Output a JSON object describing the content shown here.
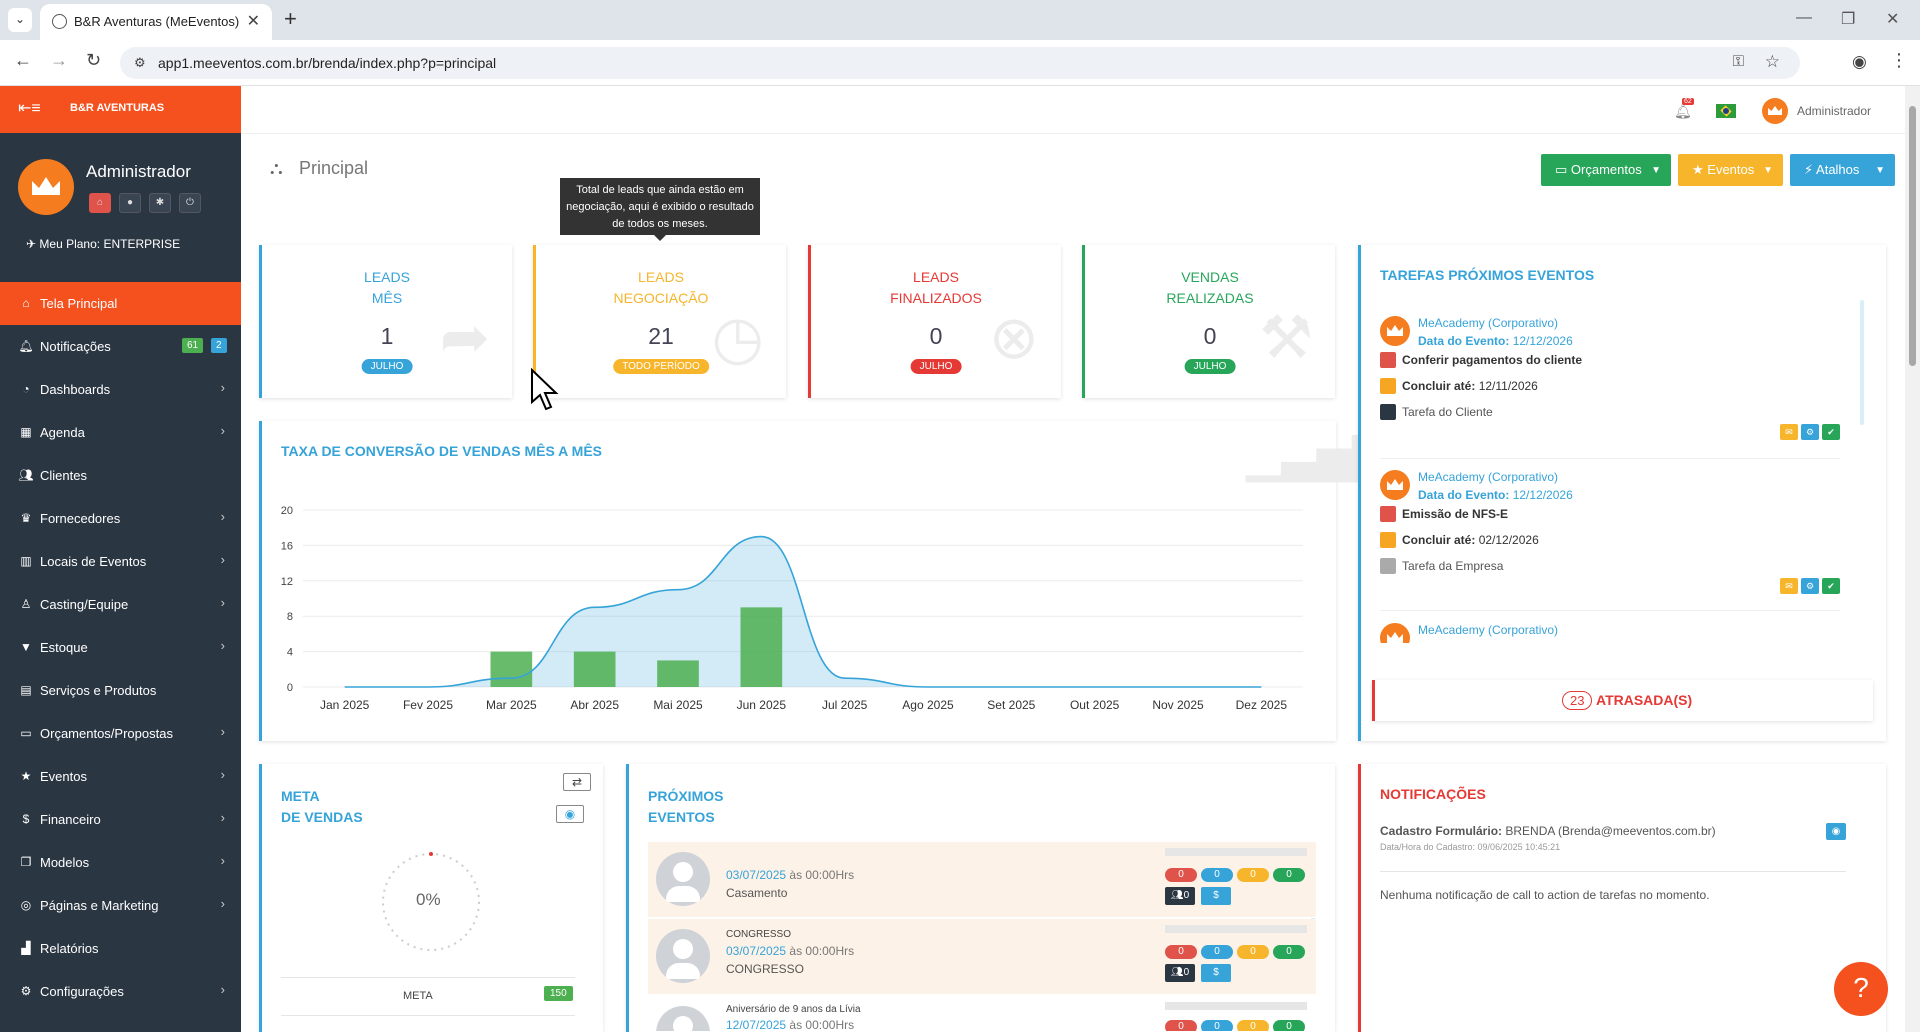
{
  "browser": {
    "tab_title": "B&R Aventuras (MeEventos)",
    "url": "app1.meeventos.com.br/brenda/index.php?p=principal"
  },
  "sidebar": {
    "brand": "B&R AVENTURAS",
    "user_name": "Administrador",
    "plan": "Meu Plano: ENTERPRISE",
    "items": [
      {
        "label": "Tela Principal",
        "icon": "home-icon"
      },
      {
        "label": "Notificações",
        "icon": "bell-icon",
        "badge_green": "61",
        "badge_blue": "2"
      },
      {
        "label": "Dashboards",
        "icon": "dashboard-icon"
      },
      {
        "label": "Agenda",
        "icon": "calendar-icon"
      },
      {
        "label": "Clientes",
        "icon": "users-icon"
      },
      {
        "label": "Fornecedores",
        "icon": "trophy-icon"
      },
      {
        "label": "Locais de Eventos",
        "icon": "building-icon"
      },
      {
        "label": "Casting/Equipe",
        "icon": "person-icon"
      },
      {
        "label": "Estoque",
        "icon": "filter-icon"
      },
      {
        "label": "Serviços e Produtos",
        "icon": "list-icon"
      },
      {
        "label": "Orçamentos/Propostas",
        "icon": "laptop-icon"
      },
      {
        "label": "Eventos",
        "icon": "star-icon"
      },
      {
        "label": "Financeiro",
        "icon": "dollar-icon"
      },
      {
        "label": "Modelos",
        "icon": "copy-icon"
      },
      {
        "label": "Páginas e Marketing",
        "icon": "globe-icon"
      },
      {
        "label": "Relatórios",
        "icon": "chart-icon"
      },
      {
        "label": "Configurações",
        "icon": "gear-icon"
      }
    ]
  },
  "header": {
    "user_name": "Administrador",
    "notification_badge": "62"
  },
  "page": {
    "title": "Principal",
    "buttons": {
      "orcamentos": "Orçamentos",
      "eventos": "Eventos",
      "atalhos": "Atalhos"
    },
    "tooltip": "Total de leads que ainda estão em negociação, aqui é exibido o resultado de todos os meses."
  },
  "stats": [
    {
      "line1": "LEADS",
      "line2": "MÊS",
      "value": "1",
      "pill": "JULHO"
    },
    {
      "line1": "LEADS",
      "line2": "NEGOCIAÇÃO",
      "value": "21",
      "pill": "TODO PERÍODO"
    },
    {
      "line1": "LEADS",
      "line2": "FINALIZADOS",
      "value": "0",
      "pill": "JULHO"
    },
    {
      "line1": "VENDAS",
      "line2": "REALIZADAS",
      "value": "0",
      "pill": "JULHO"
    }
  ],
  "chart_data": {
    "type": "bar",
    "title": "TAXA DE CONVERSÃO DE VENDAS MÊS A MÊS",
    "categories": [
      "Jan 2025",
      "Fev 2025",
      "Mar 2025",
      "Abr 2025",
      "Mai 2025",
      "Jun 2025",
      "Jul 2025",
      "Ago 2025",
      "Set 2025",
      "Out 2025",
      "Nov 2025",
      "Dez 2025"
    ],
    "yticks": [
      0,
      4,
      8,
      12,
      16,
      20
    ],
    "ylim": [
      0,
      20
    ],
    "series": [
      {
        "values": [
          0,
          0,
          4,
          4,
          3,
          9,
          0,
          0,
          0,
          0,
          0,
          0
        ],
        "color": "#4caf50"
      },
      {
        "values": [
          0,
          0,
          1,
          9,
          11,
          17,
          1,
          0,
          0,
          0,
          0,
          0
        ],
        "color": "#36a3d9"
      }
    ],
    "grid": true
  },
  "tasks": {
    "title": "TAREFAS PRÓXIMOS EVENTOS",
    "items": [
      {
        "company": "MeAcademy (Corporativo)",
        "date_label": "Data do Evento:",
        "date": "12/12/2026",
        "task": "Conferir pagamentos do cliente",
        "due_label": "Concluir até:",
        "due": "12/11/2026",
        "type": "Tarefa do Cliente"
      },
      {
        "company": "MeAcademy (Corporativo)",
        "date_label": "Data do Evento:",
        "date": "12/12/2026",
        "task": "Emissão de NFS-E",
        "due_label": "Concluir até:",
        "due": "02/12/2026",
        "type": "Tarefa da Empresa"
      },
      {
        "company": "MeAcademy (Corporativo)"
      }
    ],
    "overdue_count": "23",
    "overdue_label": "ATRASADA(S)"
  },
  "meta": {
    "line1": "META",
    "line2": "DE VENDAS",
    "percent": "0%",
    "meta_label": "META",
    "meta_value": "150"
  },
  "events": {
    "line1": "PRÓXIMOS",
    "line2": "EVENTOS",
    "time_suffix": "às 00:00Hrs",
    "rows": [
      {
        "small": "",
        "date": "03/07/2025",
        "name": "Casamento",
        "pills": [
          "0",
          "0",
          "0",
          "0"
        ],
        "people": "0",
        "money": "$"
      },
      {
        "small": "CONGRESSO",
        "date": "03/07/2025",
        "name": "CONGRESSO",
        "pills": [
          "0",
          "0",
          "0",
          "0"
        ],
        "people": "0",
        "money": "$"
      },
      {
        "small": "Aniversário de 9 anos da Lívia",
        "date": "12/07/2025",
        "name": "",
        "pills": [
          "0",
          "0",
          "0",
          "0"
        ]
      }
    ]
  },
  "notifications": {
    "title": "NOTIFICAÇÕES",
    "entry_label": "Cadastro Formulário:",
    "entry_value": "BRENDA (Brenda@meeventos.com.br)",
    "entry_date": "Data/Hora do Cadastro: 09/06/2025 10:45:21",
    "empty": "Nenhuma notificação de call to action de tarefas no momento."
  }
}
